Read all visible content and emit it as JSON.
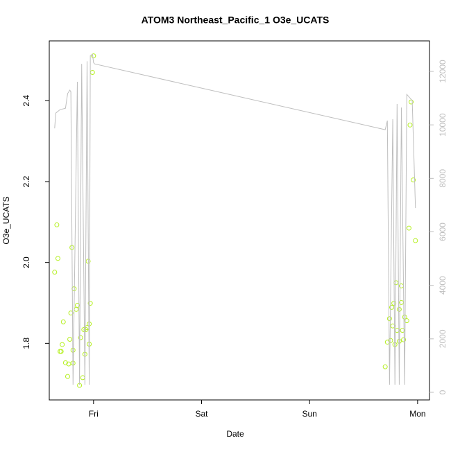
{
  "chart_data": {
    "type": "scatter",
    "title": "ATOM3 Northeast_Pacific_1 O3e_UCATS",
    "xlabel": "Date",
    "ylabel": "O3e_UCATS",
    "xlim": [
      -0.41,
      3.11
    ],
    "xticks": [
      {
        "value": 0,
        "label": "Fri"
      },
      {
        "value": 1,
        "label": "Sat"
      },
      {
        "value": 2,
        "label": "Sun"
      },
      {
        "value": 3,
        "label": "Mon"
      }
    ],
    "ylim": [
      1.66,
      2.548
    ],
    "yticks": [
      {
        "value": 1.8,
        "label": "1.8"
      },
      {
        "value": 2.0,
        "label": "2.0"
      },
      {
        "value": 2.2,
        "label": "2.2"
      },
      {
        "value": 2.4,
        "label": "2.4"
      }
    ],
    "y2lim": [
      -285,
      13140
    ],
    "y2ticks": [
      0,
      2000,
      4000,
      6000,
      8000,
      10000,
      12000
    ],
    "series": [
      {
        "type": "scatter",
        "color": "#b5f020",
        "x": [
          -0.36,
          -0.34,
          -0.33,
          -0.31,
          -0.3,
          -0.29,
          -0.28,
          -0.26,
          -0.24,
          -0.23,
          -0.22,
          -0.21,
          -0.2,
          -0.19,
          -0.19,
          -0.18,
          -0.16,
          -0.15,
          -0.13,
          -0.12,
          -0.1,
          -0.09,
          -0.08,
          -0.07,
          -0.06,
          -0.05,
          -0.04,
          -0.04,
          -0.03,
          -0.01,
          0.0,
          2.7,
          2.72,
          2.74,
          2.75,
          2.76,
          2.77,
          2.78,
          2.79,
          2.8,
          2.81,
          2.83,
          2.83,
          2.85,
          2.85,
          2.86,
          2.87,
          2.88,
          2.9,
          2.92,
          2.93,
          2.94,
          2.96,
          2.98
        ],
        "values": [
          1.976,
          2.093,
          2.01,
          1.78,
          1.78,
          1.797,
          1.853,
          1.752,
          1.718,
          1.749,
          1.81,
          1.875,
          2.037,
          1.783,
          1.751,
          1.935,
          1.884,
          1.894,
          1.696,
          1.814,
          1.715,
          1.834,
          1.773,
          1.834,
          1.839,
          2.003,
          1.848,
          1.798,
          1.899,
          2.47,
          2.511,
          1.742,
          1.803,
          1.861,
          1.807,
          1.889,
          1.843,
          1.899,
          1.797,
          1.95,
          1.832,
          1.884,
          1.805,
          1.901,
          1.942,
          1.832,
          1.809,
          1.865,
          1.856,
          2.085,
          2.34,
          2.397,
          2.204,
          2.054
        ]
      },
      {
        "type": "line",
        "axis": "y2",
        "color": "#bebebe",
        "x": [
          -0.36,
          -0.35,
          -0.31,
          -0.26,
          -0.24,
          -0.22,
          -0.21,
          -0.19,
          -0.15,
          -0.13,
          -0.11,
          -0.08,
          -0.06,
          -0.04,
          -0.03,
          -0.01,
          0.0,
          0.01,
          2.7,
          2.72,
          2.74,
          2.77,
          2.79,
          2.81,
          2.83,
          2.85,
          2.88,
          2.9,
          2.95,
          2.98
        ],
        "values": [
          9870,
          10440,
          10570,
          10620,
          11170,
          11300,
          11240,
          285,
          11610,
          285,
          12280,
          285,
          12380,
          285,
          12590,
          12640,
          12330,
          12280,
          9820,
          10160,
          285,
          10210,
          285,
          10780,
          285,
          10650,
          285,
          11140,
          10910,
          6890
        ]
      }
    ]
  }
}
